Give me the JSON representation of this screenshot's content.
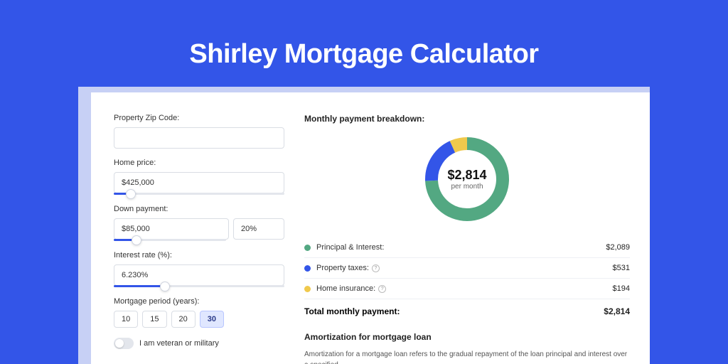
{
  "page": {
    "title": "Shirley Mortgage Calculator",
    "background_color": "#3355e8",
    "card_background": "#ffffff",
    "frame_background": "#c7d0f5"
  },
  "form": {
    "zip": {
      "label": "Property Zip Code:",
      "value": ""
    },
    "home_price": {
      "label": "Home price:",
      "value": "$425,000",
      "slider_percent": 10
    },
    "down_payment": {
      "label": "Down payment:",
      "amount": "$85,000",
      "percent": "20%",
      "slider_percent": 20
    },
    "interest": {
      "label": "Interest rate (%):",
      "value": "6.230%",
      "slider_percent": 30
    },
    "period": {
      "label": "Mortgage period (years):",
      "options": [
        "10",
        "15",
        "20",
        "30"
      ],
      "selected": "30"
    },
    "veteran": {
      "label": "I am veteran or military",
      "checked": false
    }
  },
  "breakdown": {
    "title": "Monthly payment breakdown:",
    "donut": {
      "amount": "$2,814",
      "sub": "per month",
      "segments": [
        {
          "name": "principal_interest",
          "fraction": 0.742,
          "color": "#53a882"
        },
        {
          "name": "property_taxes",
          "fraction": 0.189,
          "color": "#3355e8"
        },
        {
          "name": "home_insurance",
          "fraction": 0.069,
          "color": "#f0c94c"
        }
      ],
      "stroke_width": 18
    },
    "rows": [
      {
        "label": "Principal & Interest:",
        "value": "$2,089",
        "color": "#53a882",
        "info": false
      },
      {
        "label": "Property taxes:",
        "value": "$531",
        "color": "#3355e8",
        "info": true
      },
      {
        "label": "Home insurance:",
        "value": "$194",
        "color": "#f0c94c",
        "info": true
      }
    ],
    "total": {
      "label": "Total monthly payment:",
      "value": "$2,814"
    }
  },
  "amortization": {
    "title": "Amortization for mortgage loan",
    "text": "Amortization for a mortgage loan refers to the gradual repayment of the loan principal and interest over a specified"
  }
}
